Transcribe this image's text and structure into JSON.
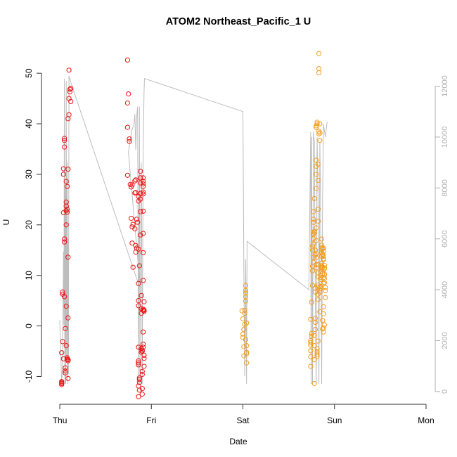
{
  "chart_data": {
    "type": "scatter",
    "title": "ATOM2 Northeast_Pacific_1 U",
    "xlabel": "Date",
    "ylabel": "U",
    "x_ticks": [
      "Thu",
      "Fri",
      "Sat",
      "Sun",
      "Mon"
    ],
    "xlim": [
      -0.2,
      4.1
    ],
    "ylim": [
      -15.5,
      56
    ],
    "y_ticks": [
      -10,
      0,
      10,
      20,
      30,
      40,
      50
    ],
    "y2_ticks": [
      0,
      2000,
      4000,
      6000,
      8000,
      10000,
      12000
    ],
    "y2lim": [
      -500,
      13700
    ],
    "grid": false,
    "legend": "none",
    "colors": {
      "series_1": "#ee1111",
      "series_2": "#f39c1c",
      "line": "#bdbdbd",
      "axis": "#333333",
      "right_axis": "#b0b0b0"
    },
    "series": [
      {
        "color": "#ee1111",
        "points": [
          [
            0.02,
            -11.0
          ],
          [
            0.02,
            -11.4
          ],
          [
            0.02,
            -11.6
          ],
          [
            0.02,
            -11.2
          ],
          [
            0.02,
            -5.3
          ],
          [
            0.03,
            -3.1
          ],
          [
            0.04,
            -6.5
          ],
          [
            0.03,
            6.7
          ],
          [
            0.03,
            6.3
          ],
          [
            0.04,
            22.4
          ],
          [
            0.04,
            30.0
          ],
          [
            0.04,
            31.1
          ],
          [
            0.05,
            35.4
          ],
          [
            0.05,
            37.1
          ],
          [
            0.05,
            36.7
          ],
          [
            0.05,
            17.2
          ],
          [
            0.05,
            16.6
          ],
          [
            0.05,
            5.8
          ],
          [
            0.06,
            -0.5
          ],
          [
            0.06,
            -8.3
          ],
          [
            0.06,
            -8.9
          ],
          [
            0.06,
            -9.3
          ],
          [
            0.07,
            -3.9
          ],
          [
            0.07,
            3.9
          ],
          [
            0.07,
            20.0
          ],
          [
            0.07,
            22.8
          ],
          [
            0.07,
            23.7
          ],
          [
            0.07,
            24.5
          ],
          [
            0.08,
            27.6
          ],
          [
            0.07,
            28.6
          ],
          [
            0.08,
            23.1
          ],
          [
            0.08,
            22.5
          ],
          [
            0.08,
            -6.3
          ],
          [
            0.08,
            -6.6
          ],
          [
            0.09,
            -6.9
          ],
          [
            0.09,
            -6.7
          ],
          [
            0.09,
            -10.4
          ],
          [
            0.09,
            1.6
          ],
          [
            0.09,
            13.6
          ],
          [
            0.09,
            31.0
          ],
          [
            0.09,
            41.0
          ],
          [
            0.1,
            41.8
          ],
          [
            0.1,
            45.0
          ],
          [
            0.1,
            50.6
          ],
          [
            0.11,
            46.3
          ],
          [
            0.11,
            46.8
          ],
          [
            0.12,
            47.0
          ],
          [
            0.12,
            44.4
          ],
          [
            0.74,
            52.6
          ],
          [
            0.75,
            45.9
          ],
          [
            0.74,
            44.1
          ],
          [
            0.74,
            39.3
          ],
          [
            0.76,
            37.0
          ],
          [
            0.76,
            36.5
          ],
          [
            0.74,
            29.8
          ],
          [
            0.77,
            28.0
          ],
          [
            0.78,
            27.5
          ],
          [
            0.79,
            27.9
          ],
          [
            0.82,
            26.3
          ],
          [
            0.83,
            26.4
          ],
          [
            0.82,
            28.7
          ],
          [
            0.83,
            28.9
          ],
          [
            0.78,
            21.3
          ],
          [
            0.79,
            19.6
          ],
          [
            0.8,
            20.1
          ],
          [
            0.82,
            19.2
          ],
          [
            0.79,
            16.4
          ],
          [
            0.83,
            15.9
          ],
          [
            0.84,
            15.4
          ],
          [
            0.83,
            14.6
          ],
          [
            0.8,
            11.6
          ],
          [
            0.84,
            21.1
          ],
          [
            0.85,
            20.5
          ],
          [
            0.86,
            24.7
          ],
          [
            0.86,
            25.6
          ],
          [
            0.86,
            15.2
          ],
          [
            0.87,
            11.9
          ],
          [
            0.86,
            8.4
          ],
          [
            0.86,
            5.0
          ],
          [
            0.86,
            4.0
          ],
          [
            0.86,
            -4.2
          ],
          [
            0.86,
            -6.9
          ],
          [
            0.86,
            -7.3
          ],
          [
            0.86,
            -7.7
          ],
          [
            0.87,
            -10.6
          ],
          [
            0.86,
            -11.9
          ],
          [
            0.87,
            -12.7
          ],
          [
            0.86,
            -14.0
          ],
          [
            0.87,
            -11.2
          ],
          [
            0.87,
            -10.3
          ],
          [
            0.88,
            30.6
          ],
          [
            0.88,
            29.3
          ],
          [
            0.88,
            28.3
          ],
          [
            0.88,
            26.2
          ],
          [
            0.88,
            25.1
          ],
          [
            0.88,
            22.6
          ],
          [
            0.88,
            18.0
          ],
          [
            0.89,
            3.4
          ],
          [
            0.89,
            2.5
          ],
          [
            0.89,
            6.0
          ],
          [
            0.89,
            -4.5
          ],
          [
            0.89,
            -5.2
          ],
          [
            0.9,
            -9.0
          ],
          [
            0.9,
            -9.6
          ],
          [
            0.9,
            -12.4
          ],
          [
            0.9,
            -13.5
          ],
          [
            0.9,
            -4.8
          ],
          [
            0.9,
            -5.0
          ],
          [
            0.91,
            -4.2
          ],
          [
            0.91,
            -3.6
          ],
          [
            0.91,
            3.1
          ],
          [
            0.91,
            3.3
          ],
          [
            0.92,
            2.9
          ],
          [
            0.91,
            9.0
          ],
          [
            0.91,
            14.5
          ],
          [
            0.91,
            18.3
          ],
          [
            0.91,
            22.7
          ],
          [
            0.91,
            26.1
          ],
          [
            0.91,
            26.5
          ],
          [
            0.91,
            27.6
          ],
          [
            0.91,
            28.1
          ],
          [
            0.91,
            28.6
          ],
          [
            0.91,
            29.3
          ],
          [
            0.91,
            -1.2
          ],
          [
            0.92,
            -5.8
          ],
          [
            0.92,
            -6.4
          ],
          [
            0.92,
            -8.0
          ],
          [
            0.92,
            3.1
          ],
          [
            0.92,
            4.8
          ]
        ]
      },
      {
        "color": "#f39c1c",
        "points": [
          [
            1.99,
            3.0
          ],
          [
            2.0,
            1.4
          ],
          [
            2.0,
            -1.6
          ],
          [
            2.0,
            -2.3
          ],
          [
            2.01,
            -4.1
          ],
          [
            2.01,
            -5.9
          ],
          [
            2.01,
            -0.7
          ],
          [
            2.02,
            0.3
          ],
          [
            2.02,
            2.5
          ],
          [
            2.02,
            3.1
          ],
          [
            2.03,
            4.9
          ],
          [
            2.03,
            5.8
          ],
          [
            2.03,
            6.5
          ],
          [
            2.03,
            7.0
          ],
          [
            2.03,
            8.0
          ],
          [
            2.03,
            -2.7
          ],
          [
            2.04,
            -3.9
          ],
          [
            2.04,
            -5.2
          ],
          [
            2.04,
            -5.5
          ],
          [
            2.04,
            -7.3
          ],
          [
            2.04,
            0.6
          ],
          [
            2.74,
            -8.0
          ],
          [
            2.74,
            -6.1
          ],
          [
            2.74,
            -4.9
          ],
          [
            2.74,
            -2.9
          ],
          [
            2.74,
            -3.3
          ],
          [
            2.74,
            -3.8
          ],
          [
            2.75,
            -2.0
          ],
          [
            2.75,
            -1.5
          ],
          [
            2.74,
            1.3
          ],
          [
            2.75,
            4.7
          ],
          [
            2.76,
            8.0
          ],
          [
            2.76,
            10.9
          ],
          [
            2.76,
            11.8
          ],
          [
            2.77,
            12.6
          ],
          [
            2.77,
            13.6
          ],
          [
            2.76,
            15.0
          ],
          [
            2.76,
            15.8
          ],
          [
            2.77,
            16.2
          ],
          [
            2.77,
            17.2
          ],
          [
            2.77,
            18.1
          ],
          [
            2.77,
            18.3
          ],
          [
            2.78,
            18.5
          ],
          [
            2.78,
            18.7
          ],
          [
            2.77,
            20.5
          ],
          [
            2.77,
            21.1
          ],
          [
            2.77,
            22.6
          ],
          [
            2.78,
            25.2
          ],
          [
            2.78,
            -1.9
          ],
          [
            2.79,
            -0.7
          ],
          [
            2.79,
            1.5
          ],
          [
            2.79,
            0.7
          ],
          [
            2.78,
            -3.9
          ],
          [
            2.78,
            -6.7
          ],
          [
            2.78,
            -11.4
          ],
          [
            2.79,
            6.7
          ],
          [
            2.79,
            7.5
          ],
          [
            2.79,
            14.0
          ],
          [
            2.79,
            15.0
          ],
          [
            2.8,
            13.5
          ],
          [
            2.8,
            14.3
          ],
          [
            2.8,
            12.1
          ],
          [
            2.8,
            11.5
          ],
          [
            2.8,
            16.9
          ],
          [
            2.8,
            19.4
          ],
          [
            2.8,
            27.2
          ],
          [
            2.8,
            32.8
          ],
          [
            2.8,
            31.6
          ],
          [
            2.8,
            30.0
          ],
          [
            2.8,
            39.6
          ],
          [
            2.81,
            40.0
          ],
          [
            2.81,
            40.3
          ],
          [
            2.8,
            39.3
          ],
          [
            2.81,
            -4.5
          ],
          [
            2.81,
            -5.1
          ],
          [
            2.81,
            -5.6
          ],
          [
            2.81,
            -6.0
          ],
          [
            2.82,
            -3.0
          ],
          [
            2.82,
            5.2
          ],
          [
            2.82,
            6.3
          ],
          [
            2.82,
            7.6
          ],
          [
            2.82,
            8.1
          ],
          [
            2.82,
            9.7
          ],
          [
            2.82,
            10.5
          ],
          [
            2.82,
            12.2
          ],
          [
            2.82,
            20.7
          ],
          [
            2.82,
            23.1
          ],
          [
            2.82,
            28.8
          ],
          [
            2.82,
            32.0
          ],
          [
            2.83,
            38.5
          ],
          [
            2.83,
            38.0
          ],
          [
            2.84,
            36.7
          ],
          [
            2.84,
            38.2
          ],
          [
            2.84,
            40.0
          ],
          [
            2.83,
            53.9
          ],
          [
            2.83,
            50.9
          ],
          [
            2.83,
            50.1
          ],
          [
            2.84,
            2.8
          ],
          [
            2.84,
            6.6
          ],
          [
            2.84,
            7.1
          ],
          [
            2.85,
            7.8
          ],
          [
            2.85,
            7.5
          ],
          [
            2.85,
            9.2
          ],
          [
            2.85,
            9.6
          ],
          [
            2.85,
            10.7
          ],
          [
            2.86,
            11.3
          ],
          [
            2.86,
            11.6
          ],
          [
            2.86,
            11.9
          ],
          [
            2.86,
            12.4
          ],
          [
            2.86,
            13.8
          ],
          [
            2.86,
            14.5
          ],
          [
            2.86,
            15.1
          ],
          [
            2.86,
            15.5
          ],
          [
            2.86,
            16.0
          ],
          [
            2.86,
            17.2
          ],
          [
            2.87,
            14.1
          ],
          [
            2.87,
            11.6
          ],
          [
            2.87,
            10.4
          ],
          [
            2.88,
            9.6
          ],
          [
            2.88,
            8.4
          ],
          [
            2.89,
            8.6
          ],
          [
            2.89,
            10.3
          ],
          [
            2.89,
            11.3
          ],
          [
            2.89,
            12.0
          ],
          [
            2.89,
            11.5
          ],
          [
            2.89,
            10.1
          ],
          [
            2.89,
            9.4
          ],
          [
            2.9,
            7.6
          ],
          [
            2.9,
            7.0
          ],
          [
            2.9,
            5.6
          ],
          [
            2.88,
            -0.4
          ],
          [
            2.88,
            -1.2
          ],
          [
            2.88,
            3.8
          ],
          [
            2.88,
            2.4
          ],
          [
            2.89,
            0.2
          ],
          [
            2.87,
            -0.6
          ],
          [
            2.87,
            1.1
          ],
          [
            2.87,
            14.2
          ],
          [
            2.87,
            15.3
          ],
          [
            2.88,
            14.7
          ],
          [
            2.88,
            13.8
          ],
          [
            2.88,
            13.3
          ],
          [
            2.88,
            13.1
          ],
          [
            2.88,
            15.4
          ]
        ]
      }
    ]
  }
}
